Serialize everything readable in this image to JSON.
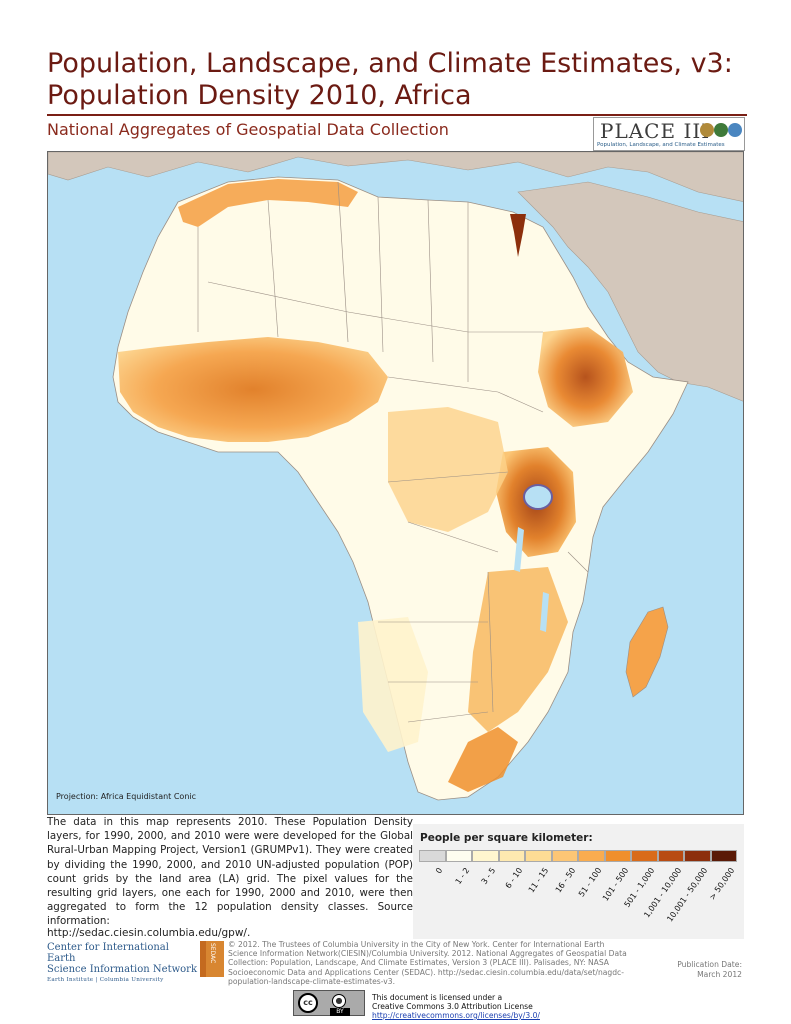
{
  "title": {
    "line1": "Population, Landscape, and Climate Estimates, v3:",
    "line2": "Population Density 2010, Africa"
  },
  "subtitle": "National Aggregates of Geospatial Data Collection",
  "place_logo": {
    "text": "PLACE III",
    "tagline": "Population, Landscape, and Climate Estimates"
  },
  "map": {
    "projection_label": "Projection: Africa Equidistant Conic",
    "ocean_color": "#b7e0f4",
    "other_land_color": "#d3c7bb"
  },
  "description": "The data in this map represents 2010.  These Population Density layers, for 1990, 2000, and 2010 were were developed for the Global Rural-Urban Mapping Project, Version1 (GRUMPv1). They were created by dividing the 1990, 2000, and 2010 UN-adjusted population (POP) count grids by the land area (LA) grid. The pixel values for the resulting grid layers, one each for 1990, 2000 and 2010, were then aggregated to form the 12 population density classes.  Source information:",
  "source_url": "http://sedac.ciesin.columbia.edu/gpw/.",
  "legend": {
    "title": "People per square kilometer:",
    "classes": [
      {
        "label": "0",
        "color": "#d9d9d9"
      },
      {
        "label": "1 - 2",
        "color": "#fefdf0"
      },
      {
        "label": "3 - 5",
        "color": "#fff6cf"
      },
      {
        "label": "6 - 10",
        "color": "#fee9b0"
      },
      {
        "label": "11 - 15",
        "color": "#fddc95"
      },
      {
        "label": "16 - 50",
        "color": "#fcc675"
      },
      {
        "label": "51 - 100",
        "color": "#f9ac4f"
      },
      {
        "label": "101 - 500",
        "color": "#f08f2c"
      },
      {
        "label": "501 - 1,000",
        "color": "#d96b1a"
      },
      {
        "label": "1,001 - 10,000",
        "color": "#b84b12"
      },
      {
        "label": "10,001 - 50,000",
        "color": "#8c2f0c"
      },
      {
        "label": "> 50,000",
        "color": "#5a1a07"
      }
    ]
  },
  "footer": {
    "ciesin_line1": "Center for International Earth",
    "ciesin_line2": "Science Information Network",
    "ciesin_line3": "Earth Institute | Columbia University",
    "sedac_logo": "SEDAC",
    "copyright": "© 2012. The Trustees of Columbia University in the City of New York.  Center for International Earth Science Information Network(CIESIN)/Columbia University. 2012. National Aggregates of Geospatial Data Collection: Population, Landscape, And Climate Estimates, Version 3 (PLACE III). Palisades, NY: NASA Socioeconomic Data and Applications Center (SEDAC). http://sedac.ciesin.columbia.edu/data/set/nagdc-population-landscape-climate-estimates-v3.",
    "pubdate_label": "Publication Date:",
    "pubdate_value": "March 2012",
    "cc_text": "cc",
    "by_text": "BY",
    "license_line1": "This document is licensed under a",
    "license_line2": "Creative Commons 3.0 Attribution License",
    "license_url": "http://creativecommons.org/licenses/by/3.0/"
  }
}
